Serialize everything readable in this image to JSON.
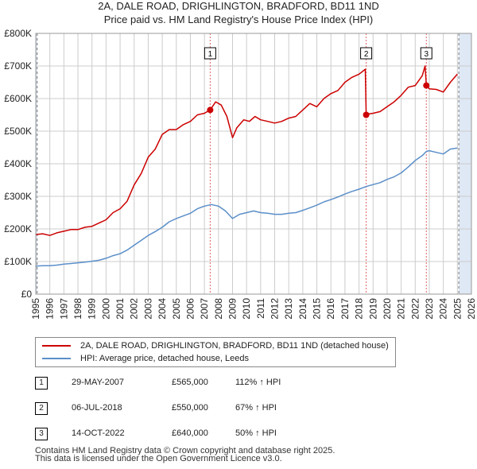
{
  "header": {
    "title_line1": "2A, DALE ROAD, DRIGHLINGTON, BRADFORD, BD11 1ND",
    "title_line2": "Price paid vs. HM Land Registry's House Price Index (HPI)"
  },
  "colors": {
    "price_line": "#cc0000",
    "hpi_line": "#5b8fc9",
    "shade": "#dfe8f5",
    "grid": "#cccccc",
    "marker_line": "#e06060"
  },
  "legend": {
    "price_label": "2A, DALE ROAD, DRIGHLINGTON, BRADFORD, BD11 1ND (detached house)",
    "hpi_label": "HPI: Average price, detached house, Leeds"
  },
  "sales": [
    {
      "num": "1",
      "date": "29-MAY-2007",
      "price": "£565,000",
      "pct": "112% ↑ HPI"
    },
    {
      "num": "2",
      "date": "06-JUL-2018",
      "price": "£550,000",
      "pct": "67% ↑ HPI"
    },
    {
      "num": "3",
      "date": "14-OCT-2022",
      "price": "£640,000",
      "pct": "50% ↑ HPI"
    }
  ],
  "footer": {
    "line1": "Contains HM Land Registry data © Crown copyright and database right 2025.",
    "line2": "This data is licensed under the Open Government Licence v3.0."
  },
  "chart_data": {
    "type": "line",
    "title": "Price paid vs. HM Land Registry's House Price Index (HPI)",
    "xlim": [
      1995,
      2026
    ],
    "ylim": [
      0,
      800000
    ],
    "x_ticks": [
      1995,
      1996,
      1997,
      1998,
      1999,
      2000,
      2001,
      2002,
      2003,
      2004,
      2005,
      2006,
      2007,
      2008,
      2009,
      2010,
      2011,
      2012,
      2013,
      2014,
      2015,
      2016,
      2017,
      2018,
      2019,
      2020,
      2021,
      2022,
      2023,
      2024,
      2025,
      2026
    ],
    "y_ticks": [
      {
        "value": 0,
        "label": "£0"
      },
      {
        "value": 100000,
        "label": "£100K"
      },
      {
        "value": 200000,
        "label": "£200K"
      },
      {
        "value": 300000,
        "label": "£300K"
      },
      {
        "value": 400000,
        "label": "£400K"
      },
      {
        "value": 500000,
        "label": "£500K"
      },
      {
        "value": 600000,
        "label": "£600K"
      },
      {
        "value": 700000,
        "label": "£700K"
      },
      {
        "value": 800000,
        "label": "£800K"
      }
    ],
    "shaded_ranges": [
      [
        1995.0,
        1995.1
      ],
      [
        2025.1,
        2026.0
      ]
    ],
    "sale_markers": [
      {
        "label": "1",
        "x": 2007.41,
        "y": 565000
      },
      {
        "label": "2",
        "x": 2018.51,
        "y": 550000
      },
      {
        "label": "3",
        "x": 2022.79,
        "y": 640000
      }
    ],
    "series": [
      {
        "name": "2A, DALE ROAD, DRIGHLINGTON, BRADFORD, BD11 1ND (detached house)",
        "x": [
          1995,
          1995.5,
          1996,
          1996.5,
          1997,
          1997.5,
          1998,
          1998.5,
          1999,
          1999.5,
          2000,
          2000.5,
          2001,
          2001.5,
          2002,
          2002.5,
          2003,
          2003.5,
          2004,
          2004.5,
          2005,
          2005.5,
          2006,
          2006.5,
          2007,
          2007.41,
          2007.8,
          2008.2,
          2008.6,
          2009,
          2009.3,
          2009.8,
          2010.2,
          2010.6,
          2011,
          2011.5,
          2012,
          2012.5,
          2013,
          2013.5,
          2014,
          2014.5,
          2015,
          2015.5,
          2016,
          2016.5,
          2017,
          2017.5,
          2018,
          2018.45,
          2018.51,
          2018.7,
          2019,
          2019.5,
          2020,
          2020.5,
          2021,
          2021.5,
          2022,
          2022.5,
          2022.7,
          2022.79,
          2023,
          2023.5,
          2024,
          2024.5,
          2025
        ],
        "values": [
          183000,
          185000,
          180000,
          188000,
          193000,
          198000,
          198000,
          205000,
          208000,
          218000,
          228000,
          250000,
          262000,
          285000,
          335000,
          370000,
          420000,
          445000,
          490000,
          505000,
          505000,
          520000,
          530000,
          550000,
          555000,
          565000,
          590000,
          580000,
          545000,
          480000,
          510000,
          535000,
          530000,
          545000,
          535000,
          530000,
          525000,
          530000,
          540000,
          545000,
          565000,
          585000,
          575000,
          600000,
          615000,
          625000,
          650000,
          665000,
          675000,
          690000,
          550000,
          553000,
          555000,
          560000,
          575000,
          590000,
          610000,
          635000,
          640000,
          670000,
          700000,
          640000,
          630000,
          628000,
          620000,
          650000,
          675000
        ]
      },
      {
        "name": "HPI: Average price, detached house, Leeds",
        "x": [
          1995,
          1995.5,
          1996,
          1996.5,
          1997,
          1997.5,
          1998,
          1998.5,
          1999,
          1999.5,
          2000,
          2000.5,
          2001,
          2001.5,
          2002,
          2002.5,
          2003,
          2003.5,
          2004,
          2004.5,
          2005,
          2005.5,
          2006,
          2006.5,
          2007,
          2007.5,
          2008,
          2008.5,
          2009,
          2009.5,
          2010,
          2010.5,
          2011,
          2011.5,
          2012,
          2012.5,
          2013,
          2013.5,
          2014,
          2014.5,
          2015,
          2015.5,
          2016,
          2016.5,
          2017,
          2017.5,
          2018,
          2018.5,
          2019,
          2019.5,
          2020,
          2020.5,
          2021,
          2021.5,
          2022,
          2022.5,
          2022.8,
          2023,
          2023.5,
          2024,
          2024.5,
          2025
        ],
        "values": [
          86000,
          87000,
          87000,
          89000,
          92000,
          94000,
          96000,
          98000,
          101000,
          104000,
          110000,
          118000,
          124000,
          135000,
          150000,
          165000,
          180000,
          192000,
          205000,
          222000,
          232000,
          240000,
          248000,
          262000,
          270000,
          275000,
          270000,
          255000,
          232000,
          245000,
          250000,
          255000,
          250000,
          248000,
          245000,
          245000,
          248000,
          250000,
          257000,
          265000,
          273000,
          283000,
          290000,
          298000,
          307000,
          315000,
          322000,
          330000,
          336000,
          342000,
          352000,
          360000,
          372000,
          390000,
          410000,
          425000,
          438000,
          440000,
          435000,
          430000,
          445000,
          448000
        ]
      }
    ]
  }
}
